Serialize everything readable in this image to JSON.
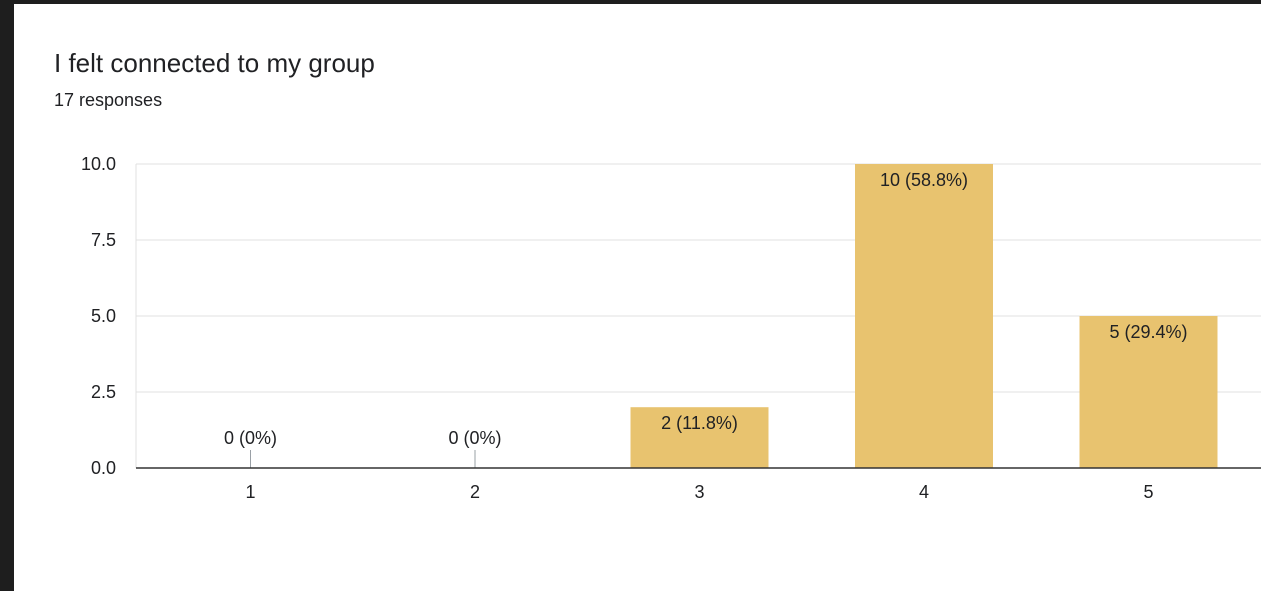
{
  "question": {
    "title": "I felt connected to my group",
    "responses": "17 responses"
  },
  "colors": {
    "bar": "#e8c36f",
    "grid": "#e0e0e0",
    "axis": "#333333",
    "text": "#202124"
  },
  "chart_data": {
    "type": "bar",
    "title": "I felt connected to my group",
    "subtitle": "17 responses",
    "xlabel": "",
    "ylabel": "",
    "categories": [
      "1",
      "2",
      "3",
      "4",
      "5"
    ],
    "values": [
      0,
      0,
      2,
      10,
      5
    ],
    "data_labels": [
      "0 (0%)",
      "0 (0%)",
      "2 (11.8%)",
      "10 (58.8%)",
      "5 (29.4%)"
    ],
    "ylim": [
      0,
      10
    ],
    "yticks": [
      "0.0",
      "2.5",
      "5.0",
      "7.5",
      "10.0"
    ],
    "grid": true,
    "legend": "none"
  }
}
